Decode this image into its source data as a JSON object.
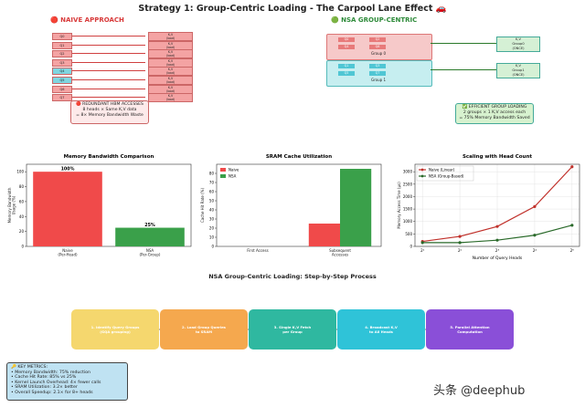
{
  "title": "Strategy 1: Group-Centric Loading - The Carpool Lane Effect 🚗",
  "naive": {
    "header": "🔴 NAIVE APPROACH",
    "queries": [
      "Q0",
      "Q1",
      "Q2",
      "Q3",
      "Q4",
      "Q5",
      "Q6",
      "Q7"
    ],
    "kv_label": "K,V\n(load)",
    "note": "🔴 REDUNDANT HBM ACCESSES\n8 heads × Same K,V data\n= 8× Memory Bandwidth Waste"
  },
  "nsa": {
    "header": "🟢 NSA GROUP-CENTRIC",
    "groups": [
      {
        "label": "Group 0",
        "queries": [
          "Q0",
          "Q2",
          "Q4",
          "Q6"
        ],
        "kv": "K,V\nGroup0\n(ONCE)"
      },
      {
        "label": "Group 1",
        "queries": [
          "Q1",
          "Q3",
          "Q5",
          "Q7"
        ],
        "kv": "K,V\nGroup1\n(ONCE)"
      }
    ],
    "note": "✅ EFFICIENT GROUP LOADING\n2 groups × 1 K,V access each\n= 75% Memory Bandwidth Saved"
  },
  "colors": {
    "naive": "#f04a4a",
    "nsa": "#3aa04a",
    "naive_line": "#c0302a",
    "nsa_line": "#2a6a2a"
  },
  "chart_data": [
    {
      "type": "bar",
      "title": "Memory Bandwidth Comparison",
      "categories": [
        "Naive\n(Per-Head)",
        "NSA\n(Per-Group)"
      ],
      "values": [
        100,
        25
      ],
      "data_labels": [
        "100%",
        "25%"
      ],
      "ylabel": "Memory Bandwidth\nUsage (%)",
      "ylim": [
        0,
        110
      ],
      "yticks": [
        0,
        20,
        40,
        60,
        80,
        100
      ]
    },
    {
      "type": "bar",
      "title": "SRAM Cache Utilization",
      "categories": [
        "First Access",
        "Subsequent\nAccesses"
      ],
      "series": [
        {
          "name": "Naive",
          "values": [
            0,
            25
          ]
        },
        {
          "name": "NSA",
          "values": [
            0,
            85
          ]
        }
      ],
      "ylabel": "Cache Hit Rate (%)",
      "ylim": [
        0,
        90
      ],
      "yticks": [
        0,
        10,
        20,
        30,
        40,
        50,
        60,
        70,
        80
      ],
      "legend": "top-left"
    },
    {
      "type": "line",
      "title": "Scaling with Head Count",
      "x": [
        2,
        4,
        8,
        16,
        32
      ],
      "xticks": [
        "2¹",
        "2²",
        "2³",
        "2⁴",
        "2⁵"
      ],
      "series": [
        {
          "name": "Naive (Linear)",
          "values": [
            200,
            400,
            800,
            1600,
            3200
          ]
        },
        {
          "name": "NSA (Group-Based)",
          "values": [
            150,
            150,
            250,
            450,
            850
          ]
        }
      ],
      "xlabel": "Number of Query Heads",
      "ylabel": "Memory Access Time (μs)",
      "ylim": [
        0,
        3300
      ],
      "yticks": [
        0,
        500,
        1000,
        1500,
        2000,
        2500,
        3000
      ],
      "xscale": "log2",
      "grid": true,
      "legend": "top-left"
    }
  ],
  "process": {
    "title": "NSA Group-Centric Loading: Step-by-Step Process",
    "steps": [
      {
        "label": "1. Identify Query Groups\n(GQA grouping)",
        "color": "#f5d76e"
      },
      {
        "label": "2. Load Group Queries\nto SRAM",
        "color": "#f5a84e"
      },
      {
        "label": "3. Single K,V Fetch\nper Group",
        "color": "#2fb8a0"
      },
      {
        "label": "4. Broadcast K,V\nto All Heads",
        "color": "#2fc3d8"
      },
      {
        "label": "5. Parallel Attention\nComputation",
        "color": "#8a4fd8"
      }
    ]
  },
  "metrics": {
    "title": "🔑 KEY METRICS:",
    "lines": [
      "• Memory Bandwidth: 75% reduction",
      "• Cache Hit Rate: 85% vs 25%",
      "• Kernel Launch Overhead: 4× fewer calls",
      "• SRAM Utilization: 3.2× better",
      "• Overall Speedup: 2.1× for 8+ heads"
    ]
  },
  "watermark": "头条 @deephub"
}
